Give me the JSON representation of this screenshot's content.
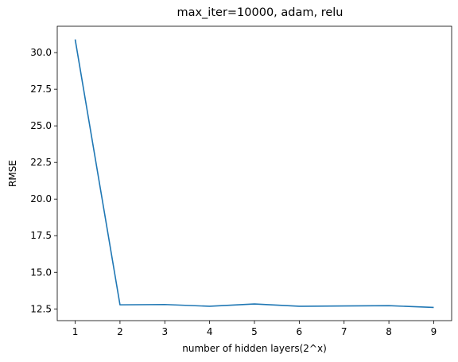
{
  "chart_data": {
    "type": "line",
    "title": "max_iter=10000, adam, relu",
    "xlabel": "number of hidden layers(2^x)",
    "ylabel": "RMSE",
    "x": [
      1,
      2,
      3,
      4,
      5,
      6,
      7,
      8,
      9
    ],
    "series": [
      {
        "values": [
          30.9,
          12.78,
          12.8,
          12.68,
          12.84,
          12.68,
          12.7,
          12.72,
          12.6
        ],
        "color": "#1f77b4"
      }
    ],
    "xlim": [
      0.6,
      9.4
    ],
    "ylim": [
      11.7,
      31.8
    ],
    "xticks": [
      1,
      2,
      3,
      4,
      5,
      6,
      7,
      8,
      9
    ],
    "yticks": [
      12.5,
      15.0,
      17.5,
      20.0,
      22.5,
      25.0,
      27.5,
      30.0
    ],
    "ytick_labels": [
      "12.5",
      "15.0",
      "17.5",
      "20.0",
      "22.5",
      "25.0",
      "27.5",
      "30.0"
    ],
    "grid": false,
    "legend": "none"
  }
}
